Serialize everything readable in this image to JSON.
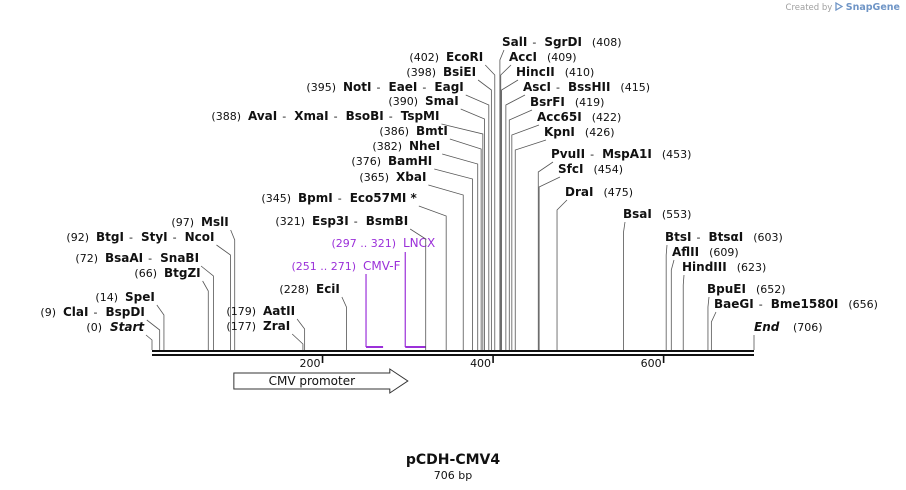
{
  "credit": {
    "created_by": "Created by",
    "brand": "SnapGene"
  },
  "plasmid": {
    "name": "pCDH-CMV4",
    "size_label": "706 bp",
    "length": 706
  },
  "ends": {
    "start_label": "Start",
    "start_pos": "(0)",
    "end_label": "End",
    "end_pos": "(706)"
  },
  "ticks": [
    {
      "pos": 200,
      "label": "200"
    },
    {
      "pos": 400,
      "label": "400"
    },
    {
      "pos": 600,
      "label": "600"
    }
  ],
  "feature": {
    "name": "CMV promoter",
    "start": 96,
    "end": 300
  },
  "primers": [
    {
      "name": "LNCX",
      "range": "(297 .. 321)",
      "start": 297,
      "end": 321
    },
    {
      "name": "CMV-F",
      "range": "(251 .. 271)",
      "start": 251,
      "end": 271
    }
  ],
  "sites": [
    {
      "names": [
        "ClaI",
        "BspDI"
      ],
      "pos_label": "(9)",
      "pos": 9
    },
    {
      "names": [
        "SpeI"
      ],
      "pos_label": "(14)",
      "pos": 14
    },
    {
      "names": [
        "BtgZI"
      ],
      "pos_label": "(66)",
      "pos": 66
    },
    {
      "names": [
        "BsaAI",
        "SnaBI"
      ],
      "pos_label": "(72)",
      "pos": 72
    },
    {
      "names": [
        "BtgI",
        "StyI",
        "NcoI"
      ],
      "pos_label": "(92)",
      "pos": 92
    },
    {
      "names": [
        "MslI"
      ],
      "pos_label": "(97)",
      "pos": 97
    },
    {
      "names": [
        "ZraI"
      ],
      "pos_label": "(177)",
      "pos": 177
    },
    {
      "names": [
        "AatII"
      ],
      "pos_label": "(179)",
      "pos": 179
    },
    {
      "names": [
        "EciI"
      ],
      "pos_label": "(228)",
      "pos": 228
    },
    {
      "names": [
        "Esp3I",
        "BsmBI"
      ],
      "pos_label": "(321)",
      "pos": 321
    },
    {
      "names": [
        "BpmI",
        "Eco57MI *"
      ],
      "pos_label": "(345)",
      "pos": 345
    },
    {
      "names": [
        "XbaI"
      ],
      "pos_label": "(365)",
      "pos": 365
    },
    {
      "names": [
        "BamHI"
      ],
      "pos_label": "(376)",
      "pos": 376
    },
    {
      "names": [
        "NheI"
      ],
      "pos_label": "(382)",
      "pos": 382
    },
    {
      "names": [
        "BmtI"
      ],
      "pos_label": "(386)",
      "pos": 386
    },
    {
      "names": [
        "AvaI",
        "XmaI",
        "BsoBI",
        "TspMI"
      ],
      "pos_label": "(388)",
      "pos": 388
    },
    {
      "names": [
        "SmaI"
      ],
      "pos_label": "(390)",
      "pos": 390
    },
    {
      "names": [
        "NotI",
        "EaeI",
        "EagI"
      ],
      "pos_label": "(395)",
      "pos": 395
    },
    {
      "names": [
        "BsiEI"
      ],
      "pos_label": "(398)",
      "pos": 398
    },
    {
      "names": [
        "EcoRI"
      ],
      "pos_label": "(402)",
      "pos": 402
    },
    {
      "names": [
        "SalI",
        "SgrDI"
      ],
      "pos_label": "(408)",
      "pos": 408
    },
    {
      "names": [
        "AccI"
      ],
      "pos_label": "(409)",
      "pos": 409
    },
    {
      "names": [
        "HincII"
      ],
      "pos_label": "(410)",
      "pos": 410
    },
    {
      "names": [
        "AscI",
        "BssHII"
      ],
      "pos_label": "(415)",
      "pos": 415
    },
    {
      "names": [
        "BsrFI"
      ],
      "pos_label": "(419)",
      "pos": 419
    },
    {
      "names": [
        "Acc65I"
      ],
      "pos_label": "(422)",
      "pos": 422
    },
    {
      "names": [
        "KpnI"
      ],
      "pos_label": "(426)",
      "pos": 426
    },
    {
      "names": [
        "PvuII",
        "MspA1I"
      ],
      "pos_label": "(453)",
      "pos": 453
    },
    {
      "names": [
        "SfcI"
      ],
      "pos_label": "(454)",
      "pos": 454
    },
    {
      "names": [
        "DraI"
      ],
      "pos_label": "(475)",
      "pos": 475
    },
    {
      "names": [
        "BsaI"
      ],
      "pos_label": "(553)",
      "pos": 553
    },
    {
      "names": [
        "BtsI",
        "BtsαI"
      ],
      "pos_label": "(603)",
      "pos": 603
    },
    {
      "names": [
        "AflII"
      ],
      "pos_label": "(609)",
      "pos": 609
    },
    {
      "names": [
        "HindIII"
      ],
      "pos_label": "(623)",
      "pos": 623
    },
    {
      "names": [
        "BpuEI"
      ],
      "pos_label": "(652)",
      "pos": 652
    },
    {
      "names": [
        "BaeGI",
        "Bme1580I"
      ],
      "pos_label": "(656)",
      "pos": 656
    }
  ]
}
